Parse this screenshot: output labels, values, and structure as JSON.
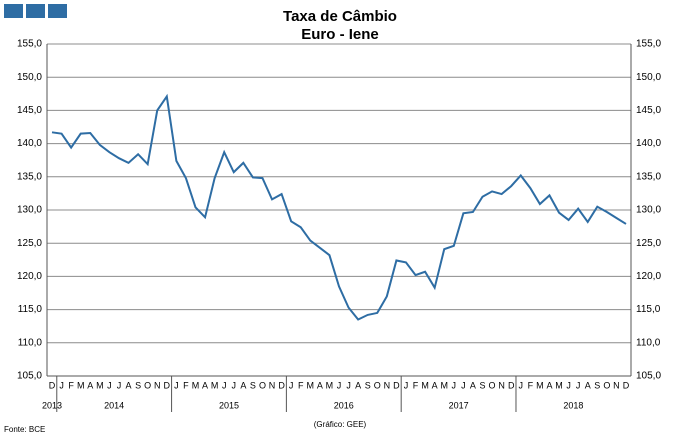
{
  "chart_data": {
    "type": "line",
    "title": "Taxa de Câmbio",
    "subtitle": "Euro - Iene",
    "source": "Fonte: BCE",
    "credit": "(Gráfico: GEE)",
    "categories": [
      "D",
      "J",
      "F",
      "M",
      "A",
      "M",
      "J",
      "J",
      "A",
      "S",
      "O",
      "N",
      "D",
      "J",
      "F",
      "M",
      "A",
      "M",
      "J",
      "J",
      "A",
      "S",
      "O",
      "N",
      "D",
      "J",
      "F",
      "M",
      "A",
      "M",
      "J",
      "J",
      "A",
      "S",
      "O",
      "N",
      "D",
      "J",
      "F",
      "M",
      "A",
      "M",
      "J",
      "J",
      "A",
      "S",
      "O",
      "N",
      "D",
      "J",
      "F",
      "M",
      "A",
      "M",
      "J",
      "J",
      "A",
      "S",
      "O",
      "N",
      "D"
    ],
    "years": [
      "2013",
      "2014",
      "2015",
      "2016",
      "2017",
      "2018"
    ],
    "series": [
      {
        "name": "Euro - Iene",
        "color": "#2e6da4",
        "values": [
          141.7,
          141.5,
          139.4,
          141.5,
          141.6,
          139.8,
          138.7,
          137.8,
          137.1,
          138.4,
          136.9,
          145.0,
          147.1,
          137.4,
          134.8,
          130.4,
          128.9,
          134.8,
          138.7,
          135.7,
          137.1,
          134.9,
          134.8,
          131.6,
          132.4,
          128.3,
          127.4,
          125.4,
          124.3,
          123.2,
          118.5,
          115.3,
          113.5,
          114.2,
          114.5,
          117.0,
          122.4,
          122.1,
          120.2,
          120.7,
          118.3,
          124.1,
          124.6,
          129.5,
          129.7,
          132.0,
          132.8,
          132.4,
          133.6,
          135.2,
          133.3,
          130.9,
          132.2,
          129.6,
          128.5,
          130.2,
          128.2,
          130.5,
          129.7,
          128.8,
          127.9
        ]
      }
    ],
    "ylim": [
      105,
      155
    ],
    "yticks": [
      {
        "value": 105,
        "label": "105,0"
      },
      {
        "value": 110,
        "label": "110,0"
      },
      {
        "value": 115,
        "label": "115,0"
      },
      {
        "value": 120,
        "label": "120,0"
      },
      {
        "value": 125,
        "label": "125,0"
      },
      {
        "value": 130,
        "label": "130,0"
      },
      {
        "value": 135,
        "label": "135,0"
      },
      {
        "value": 140,
        "label": "140,0"
      },
      {
        "value": 145,
        "label": "145,0"
      },
      {
        "value": 150,
        "label": "150,0"
      },
      {
        "value": 155,
        "label": "155,0"
      }
    ],
    "grid": true
  }
}
